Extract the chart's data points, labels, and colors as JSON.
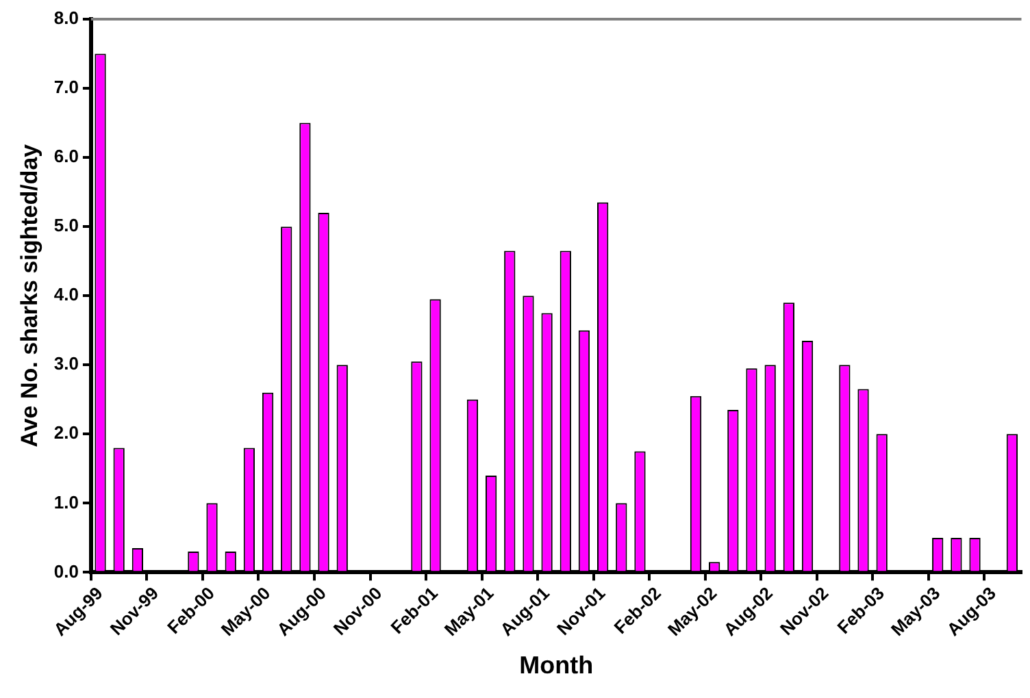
{
  "chart_data": {
    "type": "bar",
    "xlabel": "Month",
    "ylabel": "Ave No. sharks sighted/day",
    "categories": [
      "Aug-99",
      null,
      null,
      "Nov-99",
      null,
      null,
      "Feb-00",
      null,
      null,
      "May-00",
      null,
      null,
      "Aug-00",
      null,
      null,
      "Nov-00",
      null,
      null,
      "Feb-01",
      null,
      null,
      "May-01",
      null,
      null,
      "Aug-01",
      null,
      null,
      "Nov-01",
      null,
      null,
      "Feb-02",
      null,
      null,
      "May-02",
      null,
      null,
      "Aug-02",
      null,
      null,
      "Nov-02",
      null,
      null,
      "Feb-03",
      null,
      null,
      "May-03",
      null,
      null,
      "Aug-03",
      null
    ],
    "values": [
      7.5,
      1.8,
      0.35,
      null,
      null,
      0.3,
      1.0,
      0.3,
      1.8,
      2.6,
      5.0,
      6.5,
      5.2,
      3.0,
      null,
      null,
      null,
      3.05,
      3.95,
      null,
      2.5,
      1.4,
      4.65,
      4.0,
      3.75,
      4.65,
      3.5,
      5.35,
      1.0,
      1.75,
      null,
      null,
      2.55,
      0.15,
      2.35,
      2.95,
      3.0,
      3.9,
      3.35,
      null,
      3.0,
      2.65,
      2.0,
      null,
      null,
      0.5,
      0.5,
      0.5,
      null,
      2.0
    ],
    "color": "#ff00ff",
    "ylim": [
      0,
      8
    ],
    "yticks": [
      {
        "value": 0,
        "label": "0.0"
      },
      {
        "value": 1,
        "label": "1.0"
      },
      {
        "value": 2,
        "label": "2.0"
      },
      {
        "value": 3,
        "label": "3.0"
      },
      {
        "value": 4,
        "label": "4.0"
      },
      {
        "value": 5,
        "label": "5.0"
      },
      {
        "value": 6,
        "label": "6.0"
      },
      {
        "value": 7,
        "label": "7.0"
      },
      {
        "value": 8,
        "label": "8.0"
      }
    ],
    "grid": false,
    "legend": false
  }
}
